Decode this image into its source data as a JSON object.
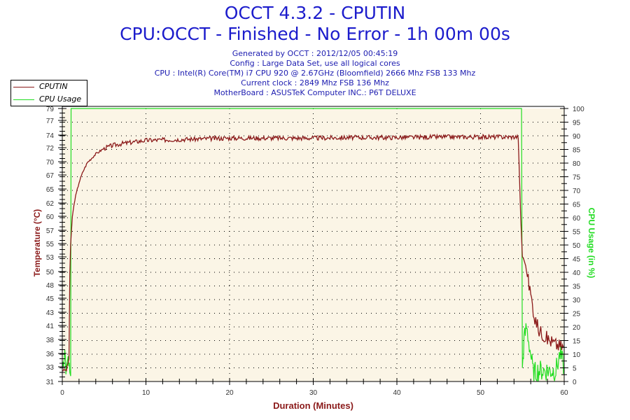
{
  "header": {
    "title": "OCCT 4.3.2 - CPUTIN",
    "subtitle": "CPU:OCCT - Finished - No Error - 1h 00m 00s",
    "info_lines": [
      "Generated by OCCT : 2012/12/05 00:45:19",
      "Config : Large Data Set, use all logical cores",
      "CPU : Intel(R) Core(TM) i7 CPU 920 @ 2.67GHz (Bloomfield) 2666 Mhz FSB 133 Mhz",
      "Current clock : 2849 Mhz FSB 136 Mhz",
      "MotherBoard : ASUSTeK Computer INC.: P6T DELUXE"
    ]
  },
  "legend": [
    {
      "label": "CPUTIN",
      "color": "#8b1a1a"
    },
    {
      "label": "CPU Usage",
      "color": "#22dd22"
    }
  ],
  "axes": {
    "xlabel": "Duration (Minutes)",
    "ylabel_left": "Temperature (°C)",
    "ylabel_right": "CPU Usage (in %)"
  },
  "chart_data": {
    "type": "line",
    "title": "OCCT 4.3.2 - CPUTIN",
    "subtitle": "CPU:OCCT - Finished - No Error - 1h 00m 00s",
    "xlabel": "Duration (Minutes)",
    "ylabel": "Temperature (°C)",
    "ylabel_right": "CPU Usage (in %)",
    "xlim": [
      0,
      60
    ],
    "ylim": [
      31,
      79
    ],
    "ylim_right": [
      0,
      100
    ],
    "x_ticks": [
      0,
      10,
      20,
      30,
      40,
      50,
      60
    ],
    "y_ticks_left": [
      79,
      77,
      74,
      72,
      70,
      67,
      65,
      62,
      60,
      57,
      55,
      53,
      50,
      48,
      45,
      43,
      41,
      38,
      36,
      33,
      31
    ],
    "y_ticks_right": [
      100,
      95,
      90,
      85,
      80,
      75,
      70,
      65,
      60,
      55,
      50,
      45,
      40,
      35,
      30,
      25,
      20,
      15,
      10,
      5,
      0
    ],
    "grid": true,
    "legend_position": "top-left",
    "series": [
      {
        "name": "CPUTIN",
        "axis": "left",
        "color": "#8b1a1a",
        "x": [
          0,
          0.5,
          0.8,
          0.9,
          1.0,
          1.2,
          1.5,
          2,
          2.5,
          3,
          4,
          5,
          6,
          7,
          8,
          9,
          10,
          15,
          20,
          25,
          30,
          35,
          40,
          45,
          50,
          54.5,
          54.8,
          55,
          55.3,
          55.8,
          56.5,
          57,
          58,
          59,
          60
        ],
        "values": [
          33,
          33,
          35,
          50,
          55,
          60,
          63,
          66,
          68,
          69.5,
          71,
          72,
          72.5,
          72.8,
          73,
          73.2,
          73.4,
          73.6,
          73.8,
          73.8,
          73.8,
          73.9,
          73.9,
          74,
          74,
          74,
          60,
          53,
          52,
          48,
          42,
          40,
          38.5,
          37.5,
          37
        ]
      },
      {
        "name": "CPU Usage",
        "axis": "right",
        "color": "#22dd22",
        "x": [
          0,
          0.3,
          0.5,
          0.7,
          0.9,
          1.0,
          1.05,
          54.9,
          55.0,
          55.2,
          55.5,
          56,
          56.3,
          57,
          58,
          59,
          59.5,
          60
        ],
        "values": [
          5,
          12,
          3,
          10,
          2,
          2,
          100,
          100,
          5,
          15,
          20,
          10,
          3,
          4,
          4,
          4,
          10,
          5
        ]
      }
    ]
  }
}
